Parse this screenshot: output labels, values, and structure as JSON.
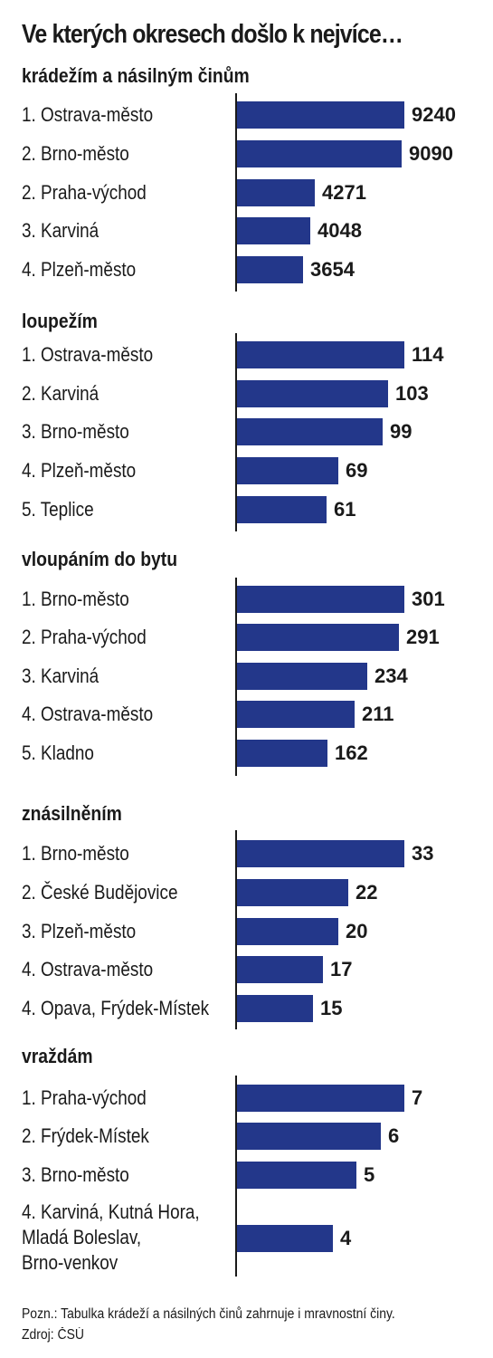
{
  "title": "Ve kterých okresech došlo k nejvíce…",
  "footnote": "Pozn.: Tabulka krádeží a násilných činů zahrnuje i mravnostní činy.",
  "source": "Zdroj: ČSÚ",
  "colors": {
    "bar": "#23378a",
    "text": "#1a1a1a",
    "background": "#ffffff"
  },
  "chart_data": [
    {
      "type": "bar",
      "orientation": "horizontal",
      "title": "krádežím a násilným činům",
      "categories": [
        "1. Ostrava-město",
        "2. Brno-město",
        "2. Praha-východ",
        "3. Karviná",
        "4. Plzeň-město"
      ],
      "values": [
        9240,
        9090,
        4271,
        4048,
        3654
      ],
      "value_labels": [
        "9240",
        "9090",
        "4271",
        "4048",
        "3654"
      ],
      "xlim": [
        0,
        9240
      ]
    },
    {
      "type": "bar",
      "orientation": "horizontal",
      "title": "loupežím",
      "categories": [
        "1. Ostrava-město",
        "2. Karviná",
        "3. Brno-město",
        "4. Plzeň-město",
        "5. Teplice"
      ],
      "values": [
        114,
        103,
        99,
        69,
        61
      ],
      "value_labels": [
        "114",
        "103",
        "99",
        "69",
        "61"
      ],
      "xlim": [
        0,
        114
      ]
    },
    {
      "type": "bar",
      "orientation": "horizontal",
      "title": "vloupáním do bytu",
      "categories": [
        "1. Brno-město",
        "2. Praha-východ",
        "3. Karviná",
        "4. Ostrava-město",
        "5. Kladno"
      ],
      "values": [
        301,
        291,
        234,
        211,
        162
      ],
      "value_labels": [
        "301",
        "291",
        "234",
        "211",
        "162"
      ],
      "xlim": [
        0,
        301
      ]
    },
    {
      "type": "bar",
      "orientation": "horizontal",
      "title": "znásilněním",
      "categories": [
        "1. Brno-město",
        "2. České Budějovice",
        "3. Plzeň-město",
        "4. Ostrava-město",
        "4. Opava, Frýdek-Místek"
      ],
      "values": [
        33,
        22,
        20,
        17,
        15
      ],
      "value_labels": [
        "33",
        "22",
        "20",
        "17",
        "15"
      ],
      "xlim": [
        0,
        33
      ]
    },
    {
      "type": "bar",
      "orientation": "horizontal",
      "title": "vraždám",
      "categories": [
        "1. Praha-východ",
        "2. Frýdek-Místek",
        "3. Brno-město",
        "4. Karviná, Kutná Hora, Mladá Boleslav, Brno-venkov"
      ],
      "category_lines": [
        [
          "1. Praha-východ"
        ],
        [
          "2. Frýdek-Místek"
        ],
        [
          "3. Brno-město"
        ],
        [
          "4. Karviná, Kutná Hora,",
          "Mladá Boleslav,",
          "Brno-venkov"
        ]
      ],
      "values": [
        7,
        6,
        5,
        4
      ],
      "value_labels": [
        "7",
        "6",
        "5",
        "4"
      ],
      "xlim": [
        0,
        7
      ]
    }
  ]
}
